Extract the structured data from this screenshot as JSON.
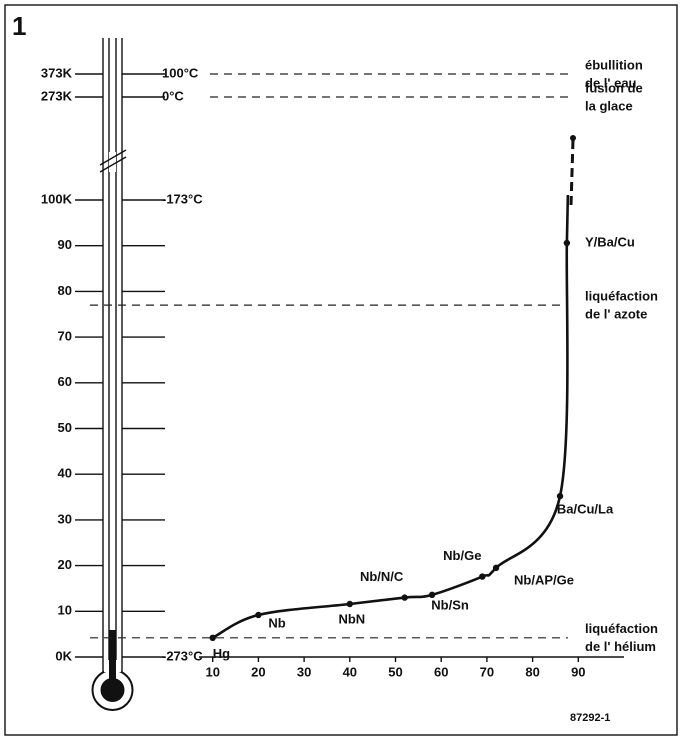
{
  "figure_number": "1",
  "figure_code": "87292-1",
  "chart_data": {
    "type": "line",
    "x": [
      10,
      20,
      40,
      52,
      58,
      69,
      72,
      86,
      87.5
    ],
    "values": [
      4.2,
      9.2,
      11.6,
      13,
      13.6,
      17.6,
      19.5,
      35.2,
      90.6
    ],
    "point_labels": [
      "Hg",
      "Nb",
      "NbN",
      "Nb/N/C",
      "Nb/Sn",
      "Nb/Ge",
      "Nb/AP/Ge",
      "Ba/Cu/La",
      "Y/Ba/Cu"
    ],
    "color": "#111",
    "xlim": [
      7,
      100
    ],
    "xticks": [
      10,
      20,
      30,
      40,
      50,
      60,
      70,
      80,
      90
    ],
    "ylim": [
      0,
      100
    ],
    "yticks": [
      {
        "value": 0,
        "label": "0K"
      },
      10,
      20,
      30,
      40,
      50,
      60,
      70,
      80,
      90,
      {
        "value": 100,
        "label": "100K"
      }
    ],
    "upper_yticks": [
      {
        "value": 273,
        "label": "273K"
      },
      {
        "value": 373,
        "label": "373K"
      }
    ],
    "celsius_labels": [
      {
        "value": 373,
        "label": "100°C"
      },
      {
        "value": 273,
        "label": "0°C"
      },
      {
        "value": 100,
        "label": "-173°C"
      },
      {
        "value": 0,
        "label": "-273°C"
      }
    ],
    "reference_lines": [
      {
        "value": 373,
        "label": [
          "ébullition",
          "de l' eau"
        ]
      },
      {
        "value": 273,
        "label": [
          "fusion de",
          "la glace"
        ]
      },
      {
        "value": 77,
        "label": [
          "liquéfaction",
          "de l' azote"
        ]
      },
      {
        "value": 4.2,
        "label": [
          "liquéfaction",
          "de l' hélium"
        ]
      }
    ]
  }
}
